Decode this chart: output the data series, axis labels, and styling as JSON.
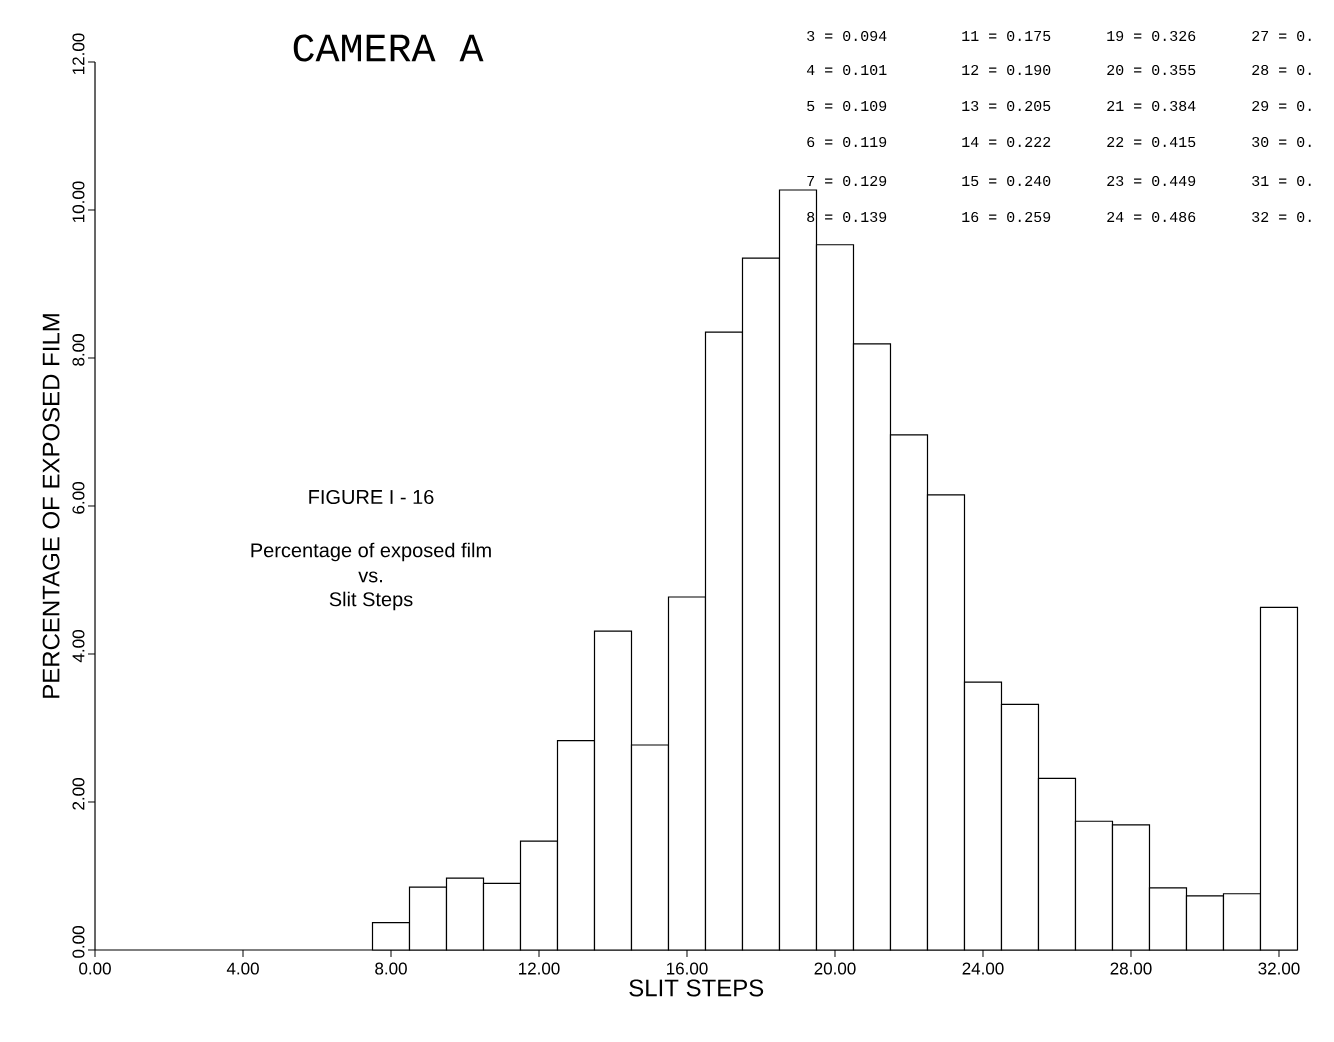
{
  "chart_data": {
    "type": "histogram",
    "title": "CAMERA A",
    "xlabel": "SLIT STEPS",
    "ylabel": "PERCENTAGE OF EXPOSED FILM",
    "bins": [
      7.5,
      8.5,
      9.5,
      10.5,
      11.5,
      12.5,
      13.5,
      14.5,
      15.5,
      16.5,
      17.5,
      18.5,
      19.5,
      20.5,
      21.5,
      22.5,
      23.5,
      24.5,
      25.5,
      26.5,
      27.5,
      28.5,
      29.5,
      30.5,
      31.5,
      32.5
    ],
    "values": [
      0.37,
      0.85,
      0.97,
      0.9,
      1.47,
      2.83,
      4.31,
      2.77,
      4.77,
      8.35,
      9.35,
      10.27,
      9.53,
      8.19,
      6.96,
      6.15,
      3.62,
      3.32,
      2.32,
      1.74,
      1.69,
      0.84,
      0.73,
      0.76,
      4.63
    ],
    "color": "#ffffff",
    "xlim": [
      0,
      32.5
    ],
    "ylim": [
      0,
      12
    ],
    "xticks": [
      {
        "value": 0,
        "label": "0.00"
      },
      {
        "value": 4,
        "label": "4.00"
      },
      {
        "value": 8,
        "label": "8.00"
      },
      {
        "value": 12,
        "label": "12.00"
      },
      {
        "value": 16,
        "label": "16.00"
      },
      {
        "value": 20,
        "label": "20.00"
      },
      {
        "value": 24,
        "label": "24.00"
      },
      {
        "value": 28,
        "label": "28.00"
      },
      {
        "value": 32,
        "label": "32.00"
      }
    ],
    "yticks": [
      {
        "value": 0,
        "label": "0.00"
      },
      {
        "value": 2,
        "label": "2.00"
      },
      {
        "value": 4,
        "label": "4.00"
      },
      {
        "value": 6,
        "label": "6.00"
      },
      {
        "value": 8,
        "label": "8.00"
      },
      {
        "value": 10,
        "label": "10.00"
      },
      {
        "value": 12,
        "label": "12.00"
      }
    ],
    "annotations": [
      "FIGURE I - 16",
      "Percentage of exposed film",
      "vs.",
      "Slit Steps",
      "3 = 0.094",
      "11 = 0.175",
      "19 = 0.326",
      "27 = 0.",
      "4 = 0.101",
      "12 = 0.190",
      "20 = 0.355",
      "28 = 0.",
      "5 = 0.109",
      "13 = 0.205",
      "21 = 0.384",
      "29 = 0.",
      "6 = 0.119",
      "14 = 0.222",
      "22 = 0.415",
      "30 = 0.",
      "7 = 0.129",
      "15 = 0.240",
      "23 = 0.449",
      "31 = 0.",
      "8 = 0.139",
      "16 = 0.259",
      "24 = 0.486",
      "32 = 0."
    ],
    "grid": false
  }
}
